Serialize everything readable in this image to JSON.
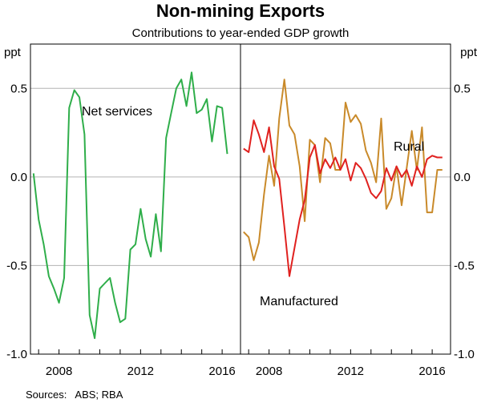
{
  "title": "Non-mining Exports",
  "subtitle": "Contributions to year-ended GDP growth",
  "source_note": "Sources:   ABS; RBA",
  "colors": {
    "net_services": "#2fae4a",
    "manufactured": "#e0211f",
    "rural": "#c98a2a",
    "grid": "#b3b3b3",
    "frame": "#000000"
  },
  "chart_data": [
    {
      "type": "line",
      "panel": "left",
      "ylabel_left": "ppt",
      "ylim": [
        -1.0,
        0.75
      ],
      "yticks": [
        0.5,
        0.0,
        -0.5,
        -1.0
      ],
      "ytick_labels": [
        "0.5",
        "0.0",
        "-0.5",
        "-1.0"
      ],
      "xlim": [
        2006.6,
        2016.9
      ],
      "xticks": [
        2008,
        2012,
        2016
      ],
      "xtick_labels": [
        "2008",
        "2012",
        "2016"
      ],
      "series": [
        {
          "name": "Net services",
          "label": "Net services",
          "color_key": "net_services",
          "x": [
            2006.75,
            2007.0,
            2007.25,
            2007.5,
            2007.75,
            2008.0,
            2008.25,
            2008.5,
            2008.75,
            2009.0,
            2009.25,
            2009.5,
            2009.75,
            2010.0,
            2010.25,
            2010.5,
            2010.75,
            2011.0,
            2011.25,
            2011.5,
            2011.75,
            2012.0,
            2012.25,
            2012.5,
            2012.75,
            2013.0,
            2013.25,
            2013.5,
            2013.75,
            2014.0,
            2014.25,
            2014.5,
            2014.75,
            2015.0,
            2015.25,
            2015.5,
            2015.75,
            2016.0,
            2016.25
          ],
          "values": [
            0.02,
            -0.24,
            -0.38,
            -0.56,
            -0.63,
            -0.71,
            -0.57,
            0.39,
            0.49,
            0.45,
            0.24,
            -0.78,
            -0.91,
            -0.63,
            -0.6,
            -0.57,
            -0.71,
            -0.82,
            -0.8,
            -0.41,
            -0.38,
            -0.18,
            -0.35,
            -0.45,
            -0.21,
            -0.42,
            0.22,
            0.36,
            0.5,
            0.55,
            0.4,
            0.59,
            0.36,
            0.38,
            0.44,
            0.2,
            0.4,
            0.39,
            0.13
          ]
        }
      ]
    },
    {
      "type": "line",
      "panel": "right",
      "ylabel_right": "ppt",
      "ylim": [
        -1.0,
        0.75
      ],
      "yticks": [
        0.5,
        0.0,
        -0.5,
        -1.0
      ],
      "ytick_labels": [
        "0.5",
        "0.0",
        "-0.5",
        "-1.0"
      ],
      "xlim": [
        2006.6,
        2016.9
      ],
      "xticks": [
        2008,
        2012,
        2016
      ],
      "xtick_labels": [
        "2008",
        "2012",
        "2016"
      ],
      "series": [
        {
          "name": "Rural",
          "label": "Rural",
          "color_key": "rural",
          "x": [
            2006.75,
            2007.0,
            2007.25,
            2007.5,
            2007.75,
            2008.0,
            2008.25,
            2008.5,
            2008.75,
            2009.0,
            2009.25,
            2009.5,
            2009.75,
            2010.0,
            2010.25,
            2010.5,
            2010.75,
            2011.0,
            2011.25,
            2011.5,
            2011.75,
            2012.0,
            2012.25,
            2012.5,
            2012.75,
            2013.0,
            2013.25,
            2013.5,
            2013.75,
            2014.0,
            2014.25,
            2014.5,
            2014.75,
            2015.0,
            2015.25,
            2015.5,
            2015.75,
            2016.0,
            2016.25,
            2016.5
          ],
          "values": [
            -0.31,
            -0.34,
            -0.47,
            -0.37,
            -0.1,
            0.12,
            -0.05,
            0.33,
            0.55,
            0.29,
            0.24,
            0.06,
            -0.25,
            0.21,
            0.18,
            -0.03,
            0.22,
            0.19,
            0.04,
            0.04,
            0.42,
            0.31,
            0.35,
            0.3,
            0.15,
            0.08,
            -0.03,
            0.33,
            -0.18,
            -0.12,
            0.06,
            -0.16,
            0.05,
            0.26,
            0.04,
            0.28,
            -0.2,
            -0.2,
            0.04,
            0.04
          ]
        },
        {
          "name": "Manufactured",
          "label": "Manufactured",
          "color_key": "manufactured",
          "x": [
            2006.75,
            2007.0,
            2007.25,
            2007.5,
            2007.75,
            2008.0,
            2008.25,
            2008.5,
            2008.75,
            2009.0,
            2009.25,
            2009.5,
            2009.75,
            2010.0,
            2010.25,
            2010.5,
            2010.75,
            2011.0,
            2011.25,
            2011.5,
            2011.75,
            2012.0,
            2012.25,
            2012.5,
            2012.75,
            2013.0,
            2013.25,
            2013.5,
            2013.75,
            2014.0,
            2014.25,
            2014.5,
            2014.75,
            2015.0,
            2015.25,
            2015.5,
            2015.75,
            2016.0,
            2016.25,
            2016.5
          ],
          "values": [
            0.16,
            0.14,
            0.32,
            0.24,
            0.14,
            0.28,
            0.06,
            -0.01,
            -0.28,
            -0.56,
            -0.4,
            -0.24,
            -0.13,
            0.11,
            0.18,
            0.02,
            0.1,
            0.05,
            0.11,
            0.04,
            0.1,
            -0.02,
            0.08,
            0.05,
            -0.01,
            -0.09,
            -0.12,
            -0.08,
            0.05,
            -0.02,
            0.06,
            0.0,
            0.04,
            -0.05,
            0.06,
            0.0,
            0.1,
            0.12,
            0.11,
            0.11
          ]
        }
      ]
    }
  ]
}
